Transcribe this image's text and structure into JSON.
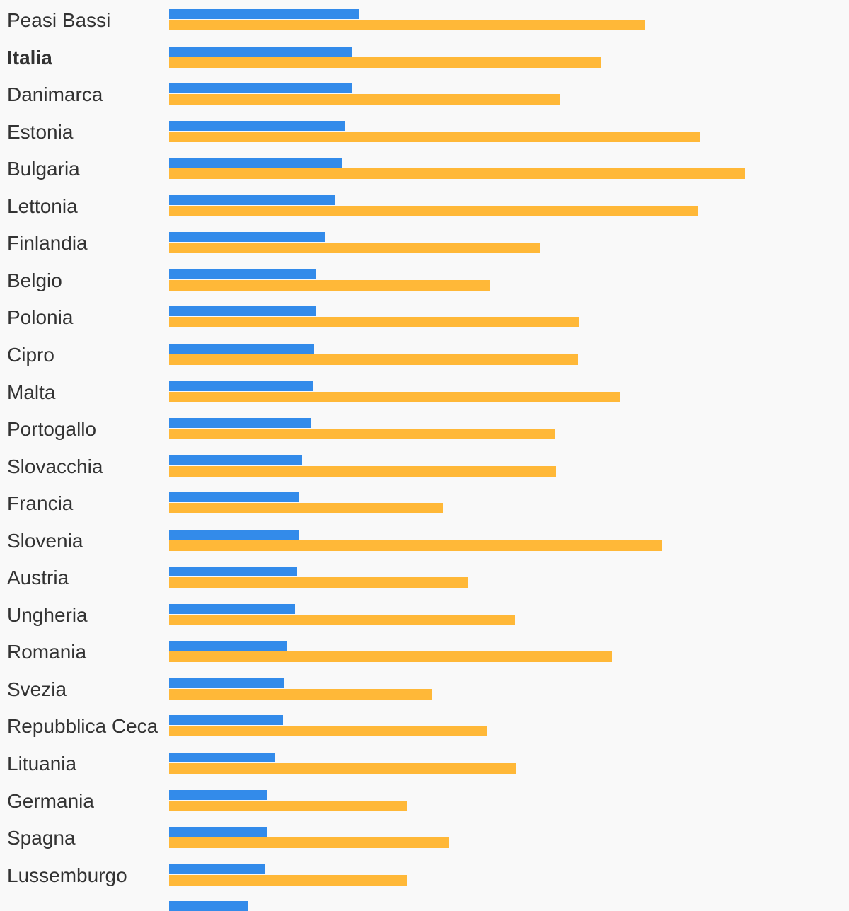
{
  "chart_data": {
    "type": "bar",
    "orientation": "horizontal",
    "title": "",
    "xlabel": "",
    "ylabel": "",
    "xlim": [
      0,
      961
    ],
    "grid": false,
    "highlight": "Italia",
    "categories": [
      "Peasi Bassi",
      "Italia",
      "Danimarca",
      "Estonia",
      "Bulgaria",
      "Lettonia",
      "Finlandia",
      "Belgio",
      "Polonia",
      "Cipro",
      "Malta",
      "Portogallo",
      "Slovacchia",
      "Francia",
      "Slovenia",
      "Austria",
      "Ungheria",
      "Romania",
      "Svezia",
      "Repubblica Ceca",
      "Lituania",
      "Germania",
      "Spagna",
      "Lussemburgo",
      ""
    ],
    "series": [
      {
        "name": "series-1",
        "color": "#338bea",
        "values": [
          268,
          259,
          258,
          249,
          245,
          234,
          221,
          208,
          208,
          205,
          203,
          200,
          188,
          183,
          183,
          181,
          178,
          167,
          162,
          161,
          149,
          139,
          139,
          135,
          111
        ]
      },
      {
        "name": "series-2",
        "color": "#ffb838",
        "values": [
          673,
          610,
          552,
          751,
          814,
          747,
          524,
          454,
          580,
          578,
          637,
          545,
          547,
          387,
          696,
          422,
          489,
          626,
          372,
          449,
          490,
          336,
          395,
          336,
          null
        ]
      }
    ]
  }
}
